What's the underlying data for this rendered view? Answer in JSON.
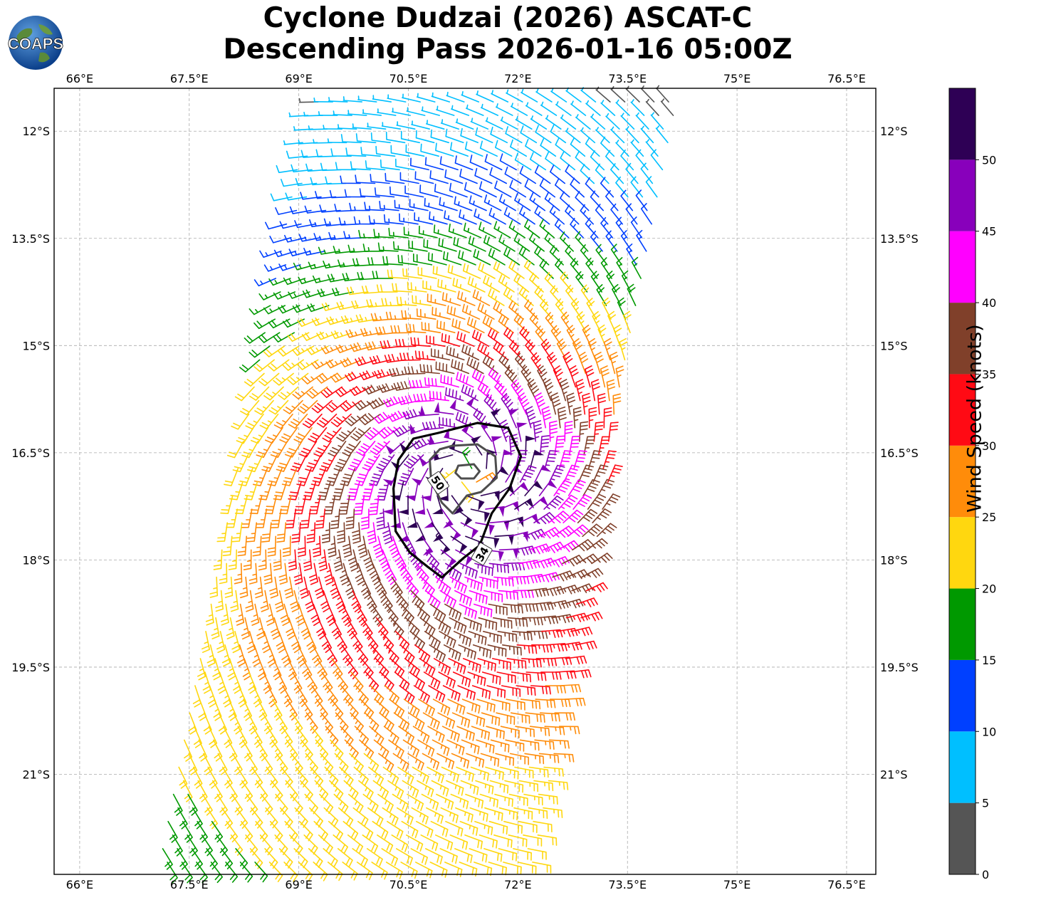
{
  "title": {
    "line1": "Cyclone Dudzai (2026) ASCAT-C",
    "line2": "Descending Pass 2026-01-16 05:00Z"
  },
  "logo": {
    "text": "COAPS"
  },
  "chart_data": {
    "type": "wind-barb-map",
    "title": "Cyclone Dudzai (2026) ASCAT-C Descending Pass 2026-01-16 05:00Z",
    "storm_center": {
      "lon": 71.3,
      "lat": -16.8
    },
    "lon_range": [
      65.65,
      76.9
    ],
    "lat_range": [
      -22.4,
      -11.4
    ],
    "x_ticks": [
      "66°E",
      "67.5°E",
      "69°E",
      "70.5°E",
      "72°E",
      "73.5°E",
      "75°E",
      "76.5°E"
    ],
    "x_tick_values": [
      66,
      67.5,
      69,
      70.5,
      72,
      73.5,
      75,
      76.5
    ],
    "y_ticks": [
      "12°S",
      "13.5°S",
      "15°S",
      "16.5°S",
      "18°S",
      "19.5°S",
      "21°S"
    ],
    "y_tick_values": [
      -12,
      -13.5,
      -15,
      -16.5,
      -18,
      -19.5,
      -21
    ],
    "colorbar": {
      "label": "Wind Speed (knots)",
      "ticks": [
        "0",
        "5",
        "10",
        "15",
        "20",
        "25",
        "30",
        "35",
        "40",
        "45",
        "50"
      ],
      "bins": [
        {
          "min": 0,
          "max": 5,
          "color": "#555555"
        },
        {
          "min": 5,
          "max": 10,
          "color": "#00bfff"
        },
        {
          "min": 10,
          "max": 15,
          "color": "#0040ff"
        },
        {
          "min": 15,
          "max": 20,
          "color": "#009900"
        },
        {
          "min": 20,
          "max": 25,
          "color": "#ffd70f"
        },
        {
          "min": 25,
          "max": 30,
          "color": "#ff8c0a"
        },
        {
          "min": 30,
          "max": 35,
          "color": "#ff0a14"
        },
        {
          "min": 35,
          "max": 40,
          "color": "#80402a"
        },
        {
          "min": 40,
          "max": 45,
          "color": "#ff00ff"
        },
        {
          "min": 45,
          "max": 50,
          "color": "#8800bb"
        },
        {
          "min": 50,
          "max": 55,
          "color": "#2e0055"
        }
      ]
    },
    "contours": [
      {
        "label": "34",
        "value": 34,
        "color": "#000000"
      },
      {
        "label": "50",
        "value": 50,
        "color": "#4d4d4d"
      }
    ]
  }
}
